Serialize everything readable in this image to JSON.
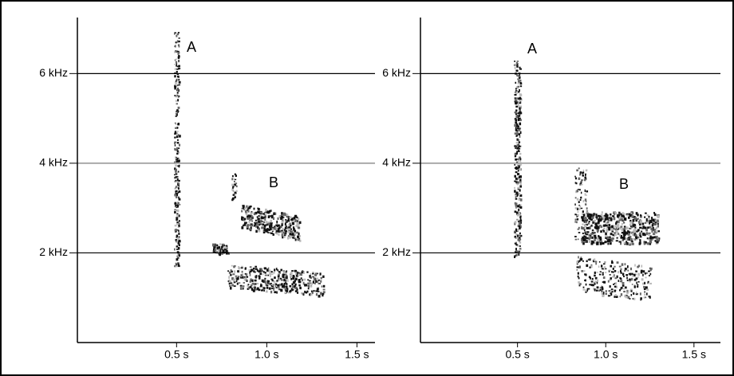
{
  "chart_data": [
    {
      "type": "spectrogram",
      "annotations": [
        "A",
        "B"
      ],
      "xlim": [
        -0.05,
        1.6
      ],
      "ylim": [
        0,
        7.25
      ],
      "xticks": [
        {
          "value": 0.5,
          "label": "0.5 s"
        },
        {
          "value": 1.0,
          "label": "1.0 s"
        },
        {
          "value": 1.5,
          "label": "1.5 s"
        }
      ],
      "yticks": [
        {
          "value": 2,
          "label": "2 kHz"
        },
        {
          "value": 4,
          "label": "4 kHz"
        },
        {
          "value": 6,
          "label": "6 kHz"
        }
      ],
      "grid": true,
      "grid_colors": [
        "#000000",
        "#aaaaaa",
        "#000000"
      ]
    },
    {
      "type": "spectrogram",
      "annotations": [
        "A",
        "B"
      ],
      "xlim": [
        -0.05,
        1.65
      ],
      "ylim": [
        0,
        7.25
      ],
      "xticks": [
        {
          "value": 0.5,
          "label": "0.5 s"
        },
        {
          "value": 1.0,
          "label": "1.0 s"
        },
        {
          "value": 1.5,
          "label": "1.5 s"
        }
      ],
      "yticks": [
        {
          "value": 2,
          "label": "2 kHz"
        },
        {
          "value": 4,
          "label": "4 kHz"
        },
        {
          "value": 6,
          "label": "6 kHz"
        }
      ],
      "grid": true,
      "grid_colors": [
        "#000000",
        "#aaaaaa",
        "#000000"
      ]
    }
  ]
}
